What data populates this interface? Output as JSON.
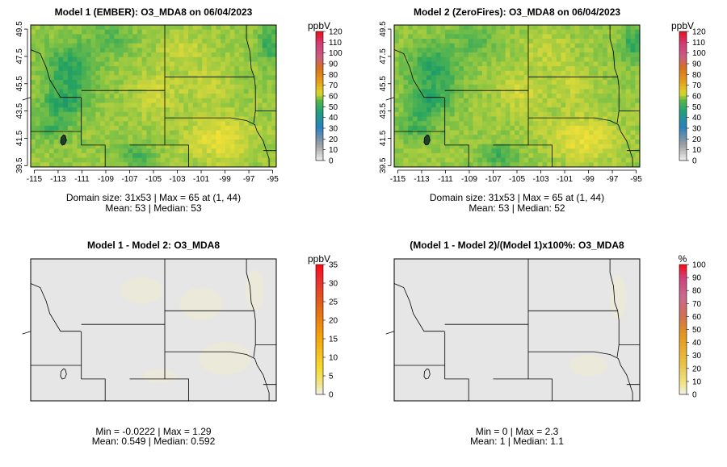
{
  "panels": [
    {
      "id": "p1",
      "title": "Model 1 (EMBER): O3_MDA8 on 06/04/2023",
      "colorbar_unit": "ppbV",
      "colorbar_ticks": [
        "0",
        "10",
        "20",
        "30",
        "40",
        "50",
        "60",
        "70",
        "80",
        "90",
        "100",
        "110",
        "120"
      ],
      "field": "ozone",
      "stat_line1": "Domain size: 31x53 | Max = 65 at (1, 44)",
      "stat_line2": "Mean: 53 |  Median: 53",
      "x_ticks": [
        "-115",
        "-113",
        "-111",
        "-109",
        "-107",
        "-105",
        "-103",
        "-101",
        "-99",
        "-97",
        "-95"
      ],
      "y_ticks": [
        "39.5",
        "41.5",
        "43.5",
        "45.5",
        "47.5",
        "49.5"
      ]
    },
    {
      "id": "p2",
      "title": "Model 2 (ZeroFires): O3_MDA8 on 06/04/2023",
      "colorbar_unit": "ppbV",
      "colorbar_ticks": [
        "0",
        "10",
        "20",
        "30",
        "40",
        "50",
        "60",
        "70",
        "80",
        "90",
        "100",
        "110",
        "120"
      ],
      "field": "ozone",
      "stat_line1": "Domain size: 31x53 | Max = 65 at (1, 44)",
      "stat_line2": "Mean: 53 |  Median: 52",
      "x_ticks": [
        "-115",
        "-113",
        "-111",
        "-109",
        "-107",
        "-105",
        "-103",
        "-101",
        "-99",
        "-97",
        "-95"
      ],
      "y_ticks": [
        "39.5",
        "41.5",
        "43.5",
        "45.5",
        "47.5",
        "49.5"
      ]
    },
    {
      "id": "p3",
      "title": "Model 1 - Model 2: O3_MDA8",
      "colorbar_unit": "ppbV",
      "colorbar_ticks": [
        "0",
        "5",
        "10",
        "15",
        "20",
        "25",
        "30",
        "35"
      ],
      "field": "diff",
      "stat_line1": "Min = -0.0222 | Max = 1.29",
      "stat_line2": "Mean: 0.549 |  Median: 0.592"
    },
    {
      "id": "p4",
      "title": "(Model 1 - Model 2)/(Model 1)x100%: O3_MDA8",
      "colorbar_unit": "%",
      "colorbar_ticks": [
        "0",
        "10",
        "20",
        "30",
        "40",
        "50",
        "60",
        "70",
        "80",
        "90",
        "100"
      ],
      "field": "pct",
      "stat_line1": "Min = 0 | Max = 2.3",
      "stat_line2": "Mean: 1 |  Median: 1.1"
    }
  ],
  "chart_data": [
    {
      "type": "heatmap",
      "title": "Model 1 (EMBER): O3_MDA8 on 06/04/2023",
      "units": "ppbV",
      "xlim": [
        -115.3,
        -94.7
      ],
      "ylim": [
        39.4,
        49.8
      ],
      "colorbar_range": [
        0,
        120
      ],
      "grid": "31x53",
      "max": 65,
      "max_at": [
        1,
        44
      ],
      "mean": 53,
      "median": 53
    },
    {
      "type": "heatmap",
      "title": "Model 2 (ZeroFires): O3_MDA8 on 06/04/2023",
      "units": "ppbV",
      "xlim": [
        -115.3,
        -94.7
      ],
      "ylim": [
        39.4,
        49.8
      ],
      "colorbar_range": [
        0,
        120
      ],
      "grid": "31x53",
      "max": 65,
      "max_at": [
        1,
        44
      ],
      "mean": 53,
      "median": 52
    },
    {
      "type": "heatmap",
      "title": "Model 1 - Model 2: O3_MDA8",
      "units": "ppbV",
      "colorbar_range": [
        0,
        35
      ],
      "min": -0.0222,
      "max": 1.29,
      "mean": 0.549,
      "median": 0.592
    },
    {
      "type": "heatmap",
      "title": "(Model 1 - Model 2)/(Model 1)x100%: O3_MDA8",
      "units": "%",
      "colorbar_range": [
        0,
        100
      ],
      "min": 0,
      "max": 2.3,
      "mean": 1,
      "median": 1.1
    }
  ],
  "colors": {
    "map_border": "#000000",
    "diff_background": "#e6e6e6"
  }
}
